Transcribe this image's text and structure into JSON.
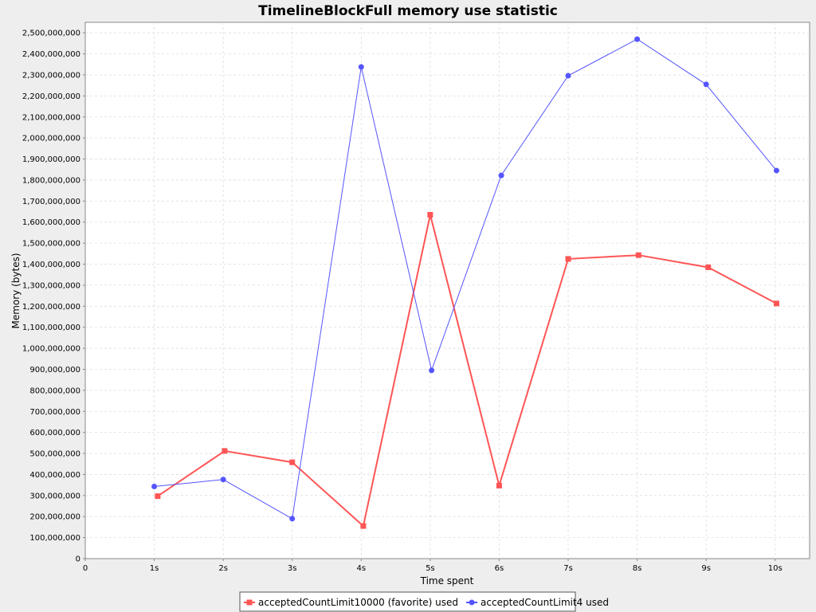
{
  "chart_data": {
    "type": "line",
    "title": "TimelineBlockFull memory use statistic",
    "xlabel": "Time spent",
    "ylabel": "Memory (bytes)",
    "xlim": [
      0,
      10.5
    ],
    "ylim": [
      0,
      2550000000
    ],
    "x_ticks": [
      {
        "value": 0,
        "label": "0"
      },
      {
        "value": 1,
        "label": "1s"
      },
      {
        "value": 2,
        "label": "2s"
      },
      {
        "value": 3,
        "label": "3s"
      },
      {
        "value": 4,
        "label": "4s"
      },
      {
        "value": 5,
        "label": "5s"
      },
      {
        "value": 6,
        "label": "6s"
      },
      {
        "value": 7,
        "label": "7s"
      },
      {
        "value": 8,
        "label": "8s"
      },
      {
        "value": 9,
        "label": "9s"
      },
      {
        "value": 10,
        "label": "10s"
      }
    ],
    "y_ticks": [
      {
        "value": 0,
        "label": "0"
      },
      {
        "value": 100000000,
        "label": "100,000,000"
      },
      {
        "value": 200000000,
        "label": "200,000,000"
      },
      {
        "value": 300000000,
        "label": "300,000,000"
      },
      {
        "value": 400000000,
        "label": "400,000,000"
      },
      {
        "value": 500000000,
        "label": "500,000,000"
      },
      {
        "value": 600000000,
        "label": "600,000,000"
      },
      {
        "value": 700000000,
        "label": "700,000,000"
      },
      {
        "value": 800000000,
        "label": "800,000,000"
      },
      {
        "value": 900000000,
        "label": "900,000,000"
      },
      {
        "value": 1000000000,
        "label": "1,000,000,000"
      },
      {
        "value": 1100000000,
        "label": "1,100,000,000"
      },
      {
        "value": 1200000000,
        "label": "1,200,000,000"
      },
      {
        "value": 1300000000,
        "label": "1,300,000,000"
      },
      {
        "value": 1400000000,
        "label": "1,400,000,000"
      },
      {
        "value": 1500000000,
        "label": "1,500,000,000"
      },
      {
        "value": 1600000000,
        "label": "1,600,000,000"
      },
      {
        "value": 1700000000,
        "label": "1,700,000,000"
      },
      {
        "value": 1800000000,
        "label": "1,800,000,000"
      },
      {
        "value": 1900000000,
        "label": "1,900,000,000"
      },
      {
        "value": 2000000000,
        "label": "2,000,000,000"
      },
      {
        "value": 2100000000,
        "label": "2,100,000,000"
      },
      {
        "value": 2200000000,
        "label": "2,200,000,000"
      },
      {
        "value": 2300000000,
        "label": "2,300,000,000"
      },
      {
        "value": 2400000000,
        "label": "2,400,000,000"
      },
      {
        "value": 2500000000,
        "label": "2,500,000,000"
      }
    ],
    "grid": true,
    "legend_position": "bottom-center",
    "series": [
      {
        "name": "acceptedCountLimit10000 (favorite) used",
        "color": "#ff5555",
        "marker": "square",
        "points": [
          {
            "x": 1.05,
            "y": 297000000
          },
          {
            "x": 2.02,
            "y": 512000000
          },
          {
            "x": 3.0,
            "y": 458000000
          },
          {
            "x": 4.03,
            "y": 155000000
          },
          {
            "x": 5.0,
            "y": 1635000000
          },
          {
            "x": 6.0,
            "y": 347000000
          },
          {
            "x": 7.0,
            "y": 1425000000
          },
          {
            "x": 8.02,
            "y": 1443000000
          },
          {
            "x": 9.03,
            "y": 1385000000
          },
          {
            "x": 10.02,
            "y": 1213000000
          }
        ]
      },
      {
        "name": "acceptedCountLimit4 used",
        "color": "#5555ff",
        "marker": "circle",
        "points": [
          {
            "x": 1.0,
            "y": 343000000
          },
          {
            "x": 2.0,
            "y": 376000000
          },
          {
            "x": 3.0,
            "y": 190000000
          },
          {
            "x": 4.0,
            "y": 2338000000
          },
          {
            "x": 5.02,
            "y": 895000000
          },
          {
            "x": 6.03,
            "y": 1822000000
          },
          {
            "x": 7.0,
            "y": 2296000000
          },
          {
            "x": 8.0,
            "y": 2470000000
          },
          {
            "x": 9.0,
            "y": 2255000000
          },
          {
            "x": 10.02,
            "y": 1845000000
          }
        ]
      }
    ]
  }
}
